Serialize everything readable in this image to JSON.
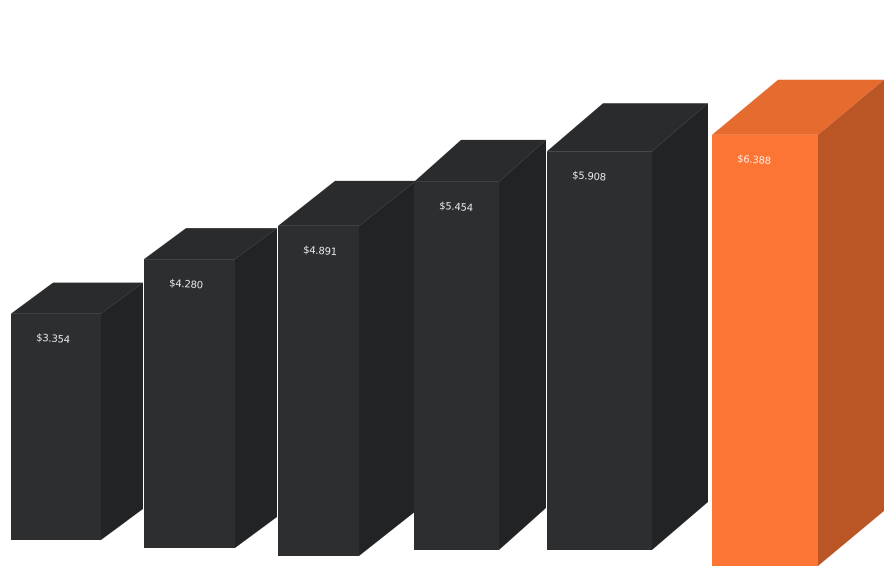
{
  "chart_data": {
    "type": "bar",
    "style": "3d-isometric-columns",
    "values": [
      3354,
      4280,
      4891,
      5454,
      5908,
      6388
    ],
    "labels": [
      "$3.354",
      "$4.280",
      "$4.891",
      "$5.454",
      "$5.908",
      "$6.388"
    ],
    "highlight_index": 5,
    "grid": false,
    "legend": "none"
  },
  "colors": {
    "bar_front": "#2d2e30",
    "bar_side": "#222324",
    "bar_top": "#2a2b2d",
    "highlight_front": "#fd7535",
    "highlight_side": "#ba5626",
    "highlight_top": "#e66b2f",
    "label_default": "#e6e6e6",
    "label_highlight": "#ffe8dc",
    "background": "#ffffff"
  }
}
